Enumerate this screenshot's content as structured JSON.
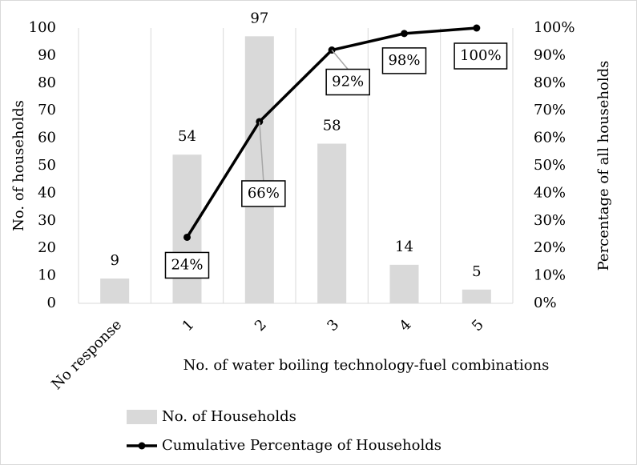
{
  "chart_data": {
    "type": "bar",
    "xlabel": "No. of water boiling technology-fuel combinations",
    "ylabel": "No. of households",
    "y2label": "Percentage of all households",
    "categories": [
      "No response",
      "1",
      "2",
      "3",
      "4",
      "5"
    ],
    "series": [
      {
        "name": "No. of Households",
        "type": "bar",
        "color": "#d9d9d9",
        "values": [
          9,
          54,
          97,
          58,
          14,
          5
        ]
      },
      {
        "name": "Cumulative Percentage of Households",
        "type": "line",
        "axis": "y2",
        "color": "#000000",
        "values": [
          null,
          24,
          66,
          92,
          98,
          100
        ],
        "value_labels": [
          null,
          "24%",
          "66%",
          "92%",
          "98%",
          "100%"
        ]
      }
    ],
    "ylim": [
      0,
      100
    ],
    "yticks": [
      0,
      10,
      20,
      30,
      40,
      50,
      60,
      70,
      80,
      90,
      100
    ],
    "y2lim": [
      0,
      100
    ],
    "y2ticks": [
      {
        "value": 0,
        "label": "0%"
      },
      {
        "value": 10,
        "label": "10%"
      },
      {
        "value": 20,
        "label": "20%"
      },
      {
        "value": 30,
        "label": "30%"
      },
      {
        "value": 40,
        "label": "40%"
      },
      {
        "value": 50,
        "label": "50%"
      },
      {
        "value": 60,
        "label": "60%"
      },
      {
        "value": 70,
        "label": "70%"
      },
      {
        "value": 80,
        "label": "80%"
      },
      {
        "value": 90,
        "label": "90%"
      },
      {
        "value": 100,
        "label": "100%"
      }
    ],
    "grid": true,
    "legend": "bottom"
  }
}
